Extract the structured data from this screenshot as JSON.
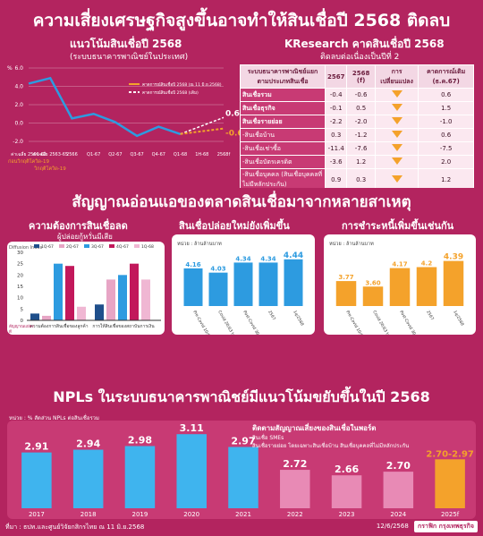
{
  "header": {
    "main_title": "ความเสี่ยงเศรษฐกิจสูงขึ้นอาจทำให้สินเชื่อปี 2568 ติดลบ",
    "left_title": "แนวโน้มสินเชื่อปี 2568",
    "left_sub": "(ระบบธนาคารพาณิชย์ในประเทศ)",
    "right_title": "KResearch คาดสินเชื่อปี 2568",
    "right_sub": "ติดลบต่อเนื่องเป็นปีที่ 2"
  },
  "section2_title": "สัญญาณอ่อนแอของตลาดสินเชื่อมาจากหลายสาเหตุ",
  "section3_title": "NPLs ในระบบธนาคารพาณิชย์มีแนวโน้มขยับขึ้นในปี 2568",
  "colors": {
    "bg": "#b3245f",
    "blue": "#2d9be0",
    "orange": "#f4a22b",
    "pink": "#e7a5c5",
    "magenta": "#c2185b",
    "navy": "#1f4f8b"
  },
  "trend_chart": {
    "pct_label": "%",
    "legend": [
      {
        "label": "คาดการณ์สินเชื่อปี 2568 (ณ 11 มิ.ย.2568)",
        "color": "#f4a22b"
      },
      {
        "label": "คาดการณ์สินเชื่อปี 2568 (เดิม)",
        "color": "#ffffff"
      }
    ],
    "yticks": [
      "6.0",
      "4.0",
      "2.0",
      "0.0",
      "-2.0"
    ],
    "xlabels": [
      "ค่าเฉลี่ย 2560-62",
      "ค่าเฉลี่ย 2563-65",
      "2566",
      "Q1-67",
      "Q2-67",
      "Q3-67",
      "Q4-67",
      "Q1-68",
      "1H-68",
      "2568f"
    ],
    "xsub": [
      "ก่อนวิกฤติโควิด-19",
      "วิกฤติโควิด-19"
    ],
    "values": [
      4.3,
      4.9,
      0.5,
      1.0,
      0.1,
      -1.4,
      -0.4,
      -1.2,
      -0.9,
      -0.6
    ],
    "end_labels": {
      "orig": "0.6",
      "new": "-0.6"
    }
  },
  "table": {
    "headers": [
      "ระบบธนาคารพาณิชย์แยกตามประเภทสินเชื่อ",
      "2567",
      "2568 (f)",
      "การเปลี่ยนแปลง",
      "คาดการณ์เดิม (ธ.ค.67)"
    ],
    "rows": [
      {
        "label": "สินเชื่อรวม",
        "y67": "-0.4",
        "y68": "-0.6",
        "old": "0.6",
        "sub": false
      },
      {
        "label": "สินเชื่อธุรกิจ",
        "y67": "-0.1",
        "y68": "0.5",
        "old": "1.5",
        "sub": false
      },
      {
        "label": "สินเชื่อรายย่อย",
        "y67": "-2.2",
        "y68": "-2.0",
        "old": "-1.0",
        "sub": false
      },
      {
        "label": "-สินเชื่อบ้าน",
        "y67": "0.3",
        "y68": "-1.2",
        "old": "0.6",
        "sub": true
      },
      {
        "label": "-สินเชื่อเช่าซื้อ",
        "y67": "-11.4",
        "y68": "-7.6",
        "old": "-7.5",
        "sub": true
      },
      {
        "label": "-สินเชื่อบัตรเครดิต",
        "y67": "-3.6",
        "y68": "1.2",
        "old": "2.0",
        "sub": true
      },
      {
        "label": "-สินเชื่อบุคคล (สินเชื่อบุคคลที่ไม่มีหลักประกัน)",
        "y67": "0.9",
        "y68": "0.3",
        "old": "1.2",
        "sub": true
      }
    ]
  },
  "demand_chart": {
    "title": "ความต้องการสินเชื่อลด",
    "subtitle": "ผู้ปล่อยกู้หวั่นมีเสีย",
    "ylabel": "Diffusion Index",
    "yticks": [
      "30",
      "25",
      "20",
      "15",
      "10",
      "5",
      "0"
    ],
    "legend": [
      "1Q-67",
      "2Q-67",
      "3Q-67",
      "4Q-67",
      "1Q-68"
    ],
    "group_labels": [
      "ความต้องการสินเชื่อของลูกค้า",
      "การให้สินเชื่อของสถาบันการเงิน"
    ],
    "ylabel_left": "สัญญาณแย่ลง",
    "ylabel_left2": "ดี",
    "series_colors": [
      "#1f4f8b",
      "#e7a5c5",
      "#2d9be0",
      "#c2185b",
      "#f0b7d3"
    ],
    "groups": [
      {
        "values": [
          3,
          2,
          25,
          24,
          6
        ]
      },
      {
        "values": [
          7,
          18,
          20,
          25,
          18
        ]
      }
    ]
  },
  "new_loans_chart": {
    "title": "สินเชื่อปล่อยใหม่ยังเพิ่มขึ้น",
    "unit": "หน่วย : ล้านล้านบาท",
    "categories": [
      "Pre-Covid 10/60 to 10/63",
      "Covid 20/63 to 20/65",
      "Post-Covid 30/65 to 40/66",
      "2567",
      "1q/2568"
    ],
    "values": [
      4.16,
      4.03,
      4.34,
      4.34,
      4.44
    ],
    "labels": [
      "4.16",
      "4.03",
      "4.34",
      "4.34",
      "4.44"
    ]
  },
  "repay_chart": {
    "title": "การชำระหนี้เพิ่มขึ้นเช่นกัน",
    "unit": "หน่วย : ล้านล้านบาท",
    "categories": [
      "Pre-Covid 10/60 to 10/63",
      "Covid 20/63 to 20/65",
      "Post-Covid 30/65 to 40/66",
      "2567",
      "1q/2568"
    ],
    "values": [
      3.77,
      3.6,
      4.17,
      4.2,
      4.39
    ],
    "labels": [
      "3.77",
      "3.60",
      "4.17",
      "4.2",
      "4.39"
    ]
  },
  "npl_chart": {
    "unit": "หน่วย : % สัดส่วน NPLs ต่อสินเชื่อรวม",
    "categories": [
      "2017",
      "2018",
      "2019",
      "2020",
      "2021",
      "2022",
      "2023",
      "2024",
      "2025f"
    ],
    "values": [
      2.91,
      2.94,
      2.98,
      3.11,
      2.97,
      2.72,
      2.66,
      2.7,
      2.835
    ],
    "labels": [
      "2.91",
      "2.94",
      "2.98",
      "3.11",
      "2.97",
      "2.72",
      "2.66",
      "2.70",
      "2.70-2.97"
    ],
    "note_title": "ติดตามสัญญาณเสี่ยงของสินเชื่อในพอร์ต",
    "note_l1": "สินเชื่อ SMEs",
    "note_l2": "สินเชื่อรายย่อย โดยเฉพาะสินเชื่อบ้าน สินเชื่อบุคคลที่ไม่มีหลักประกัน"
  },
  "footer": {
    "source": "ที่มา : ธปท.และศูนย์วิจัยกสิกรไทย ณ 11 มิ.ย.2568",
    "date": "12/6/2568",
    "brand": "กราฟิก กรุงเทพธุรกิจ"
  }
}
